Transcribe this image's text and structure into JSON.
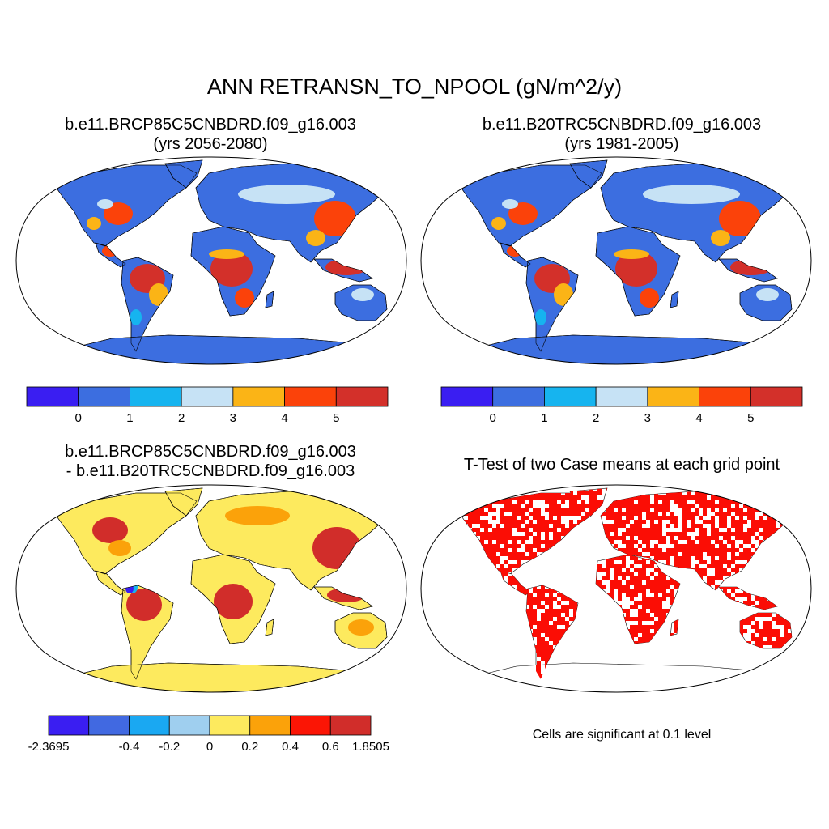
{
  "title": "ANN RETRANSN_TO_NPOOL (gN/m^2/y)",
  "panels": [
    {
      "id": "p1",
      "line1": "b.e11.BRCP85C5CNBDRD.f09_g16.003",
      "line2": "(yrs 2056-2080)"
    },
    {
      "id": "p2",
      "line1": "b.e11.B20TRC5CNBDRD.f09_g16.003",
      "line2": "(yrs 1981-2005)"
    },
    {
      "id": "p3",
      "line1": "b.e11.BRCP85C5CNBDRD.f09_g16.003",
      "line2": "- b.e11.B20TRC5CNBDRD.f09_g16.003"
    },
    {
      "id": "p4",
      "line1": "T-Test of two Case means at each grid point",
      "line2": ""
    }
  ],
  "significance_note": "Cells are significant at 0.1 level",
  "colorbars": [
    {
      "id": "cb1",
      "colors": [
        "#3a1ef2",
        "#3c6ee0",
        "#16b4ef",
        "#c6e2f5",
        "#fbb416",
        "#fb420a",
        "#d3302a"
      ],
      "labels": [
        "0",
        "1",
        "2",
        "3",
        "4",
        "5"
      ]
    },
    {
      "id": "cb2",
      "colors": [
        "#3a1ef2",
        "#3c6ee0",
        "#16b4ef",
        "#c6e2f5",
        "#fbb416",
        "#fb420a",
        "#d3302a"
      ],
      "labels": [
        "0",
        "1",
        "2",
        "3",
        "4",
        "5"
      ]
    },
    {
      "id": "cb3",
      "colors": [
        "#3a1ef2",
        "#4169e1",
        "#1aa8f2",
        "#9fcfef",
        "#fdea5e",
        "#fba20a",
        "#fb1505",
        "#d12d2a"
      ],
      "labels": [
        "-2.3695",
        "-0.4",
        "-0.2",
        "0",
        "0.2",
        "0.4",
        "0.6",
        "1.8505"
      ]
    }
  ],
  "map_colors": {
    "land_base": "#3c6ee0",
    "mid": "#c6e2f5",
    "light": "#16b4ef",
    "warm": "#fbb416",
    "hot": "#fb420a",
    "hottest": "#d3302a",
    "diff_base": "#fdea5e",
    "diff_warm": "#fba20a",
    "diff_hot": "#d12d2a",
    "sig": "#fb0d05"
  }
}
